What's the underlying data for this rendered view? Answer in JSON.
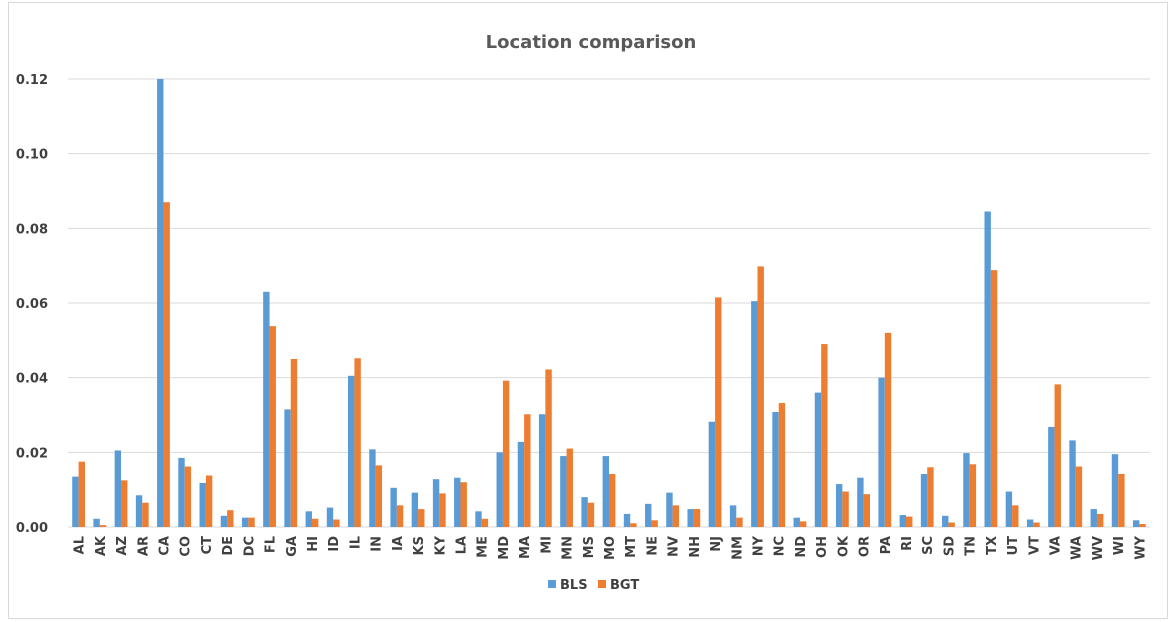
{
  "chart_data": {
    "type": "bar",
    "title": "Location comparison",
    "xlabel": "",
    "ylabel": "",
    "ylim": [
      0,
      0.12
    ],
    "yticks": [
      "0.00",
      "0.02",
      "0.04",
      "0.06",
      "0.08",
      "0.10",
      "0.12"
    ],
    "grid": true,
    "legend_position": "bottom",
    "categories": [
      "AL",
      "AK",
      "AZ",
      "AR",
      "CA",
      "CO",
      "CT",
      "DE",
      "DC",
      "FL",
      "GA",
      "HI",
      "ID",
      "IL",
      "IN",
      "IA",
      "KS",
      "KY",
      "LA",
      "ME",
      "MD",
      "MA",
      "MI",
      "MN",
      "MS",
      "MO",
      "MT",
      "NE",
      "NV",
      "NH",
      "NJ",
      "NM",
      "NY",
      "NC",
      "ND",
      "OH",
      "OK",
      "OR",
      "PA",
      "RI",
      "SC",
      "SD",
      "TN",
      "TX",
      "UT",
      "VT",
      "VA",
      "WA",
      "WV",
      "WI",
      "WY"
    ],
    "series": [
      {
        "name": "BLS",
        "color": "#5b9bd5",
        "values": [
          0.0135,
          0.0022,
          0.0205,
          0.0085,
          0.12,
          0.0185,
          0.0118,
          0.003,
          0.0025,
          0.063,
          0.0315,
          0.0042,
          0.0052,
          0.0405,
          0.0208,
          0.0105,
          0.0092,
          0.0128,
          0.0132,
          0.0042,
          0.02,
          0.0228,
          0.0302,
          0.019,
          0.008,
          0.019,
          0.0035,
          0.0062,
          0.0092,
          0.0048,
          0.0282,
          0.0058,
          0.0605,
          0.0308,
          0.0025,
          0.036,
          0.0115,
          0.0132,
          0.04,
          0.0032,
          0.0142,
          0.003,
          0.0198,
          0.0845,
          0.0095,
          0.002,
          0.0268,
          0.0232,
          0.0048,
          0.0195,
          0.0018
        ]
      },
      {
        "name": "BGT",
        "color": "#ed7d31",
        "values": [
          0.0175,
          0.0005,
          0.0125,
          0.0065,
          0.087,
          0.0162,
          0.0138,
          0.0045,
          0.0025,
          0.0538,
          0.045,
          0.0022,
          0.002,
          0.0452,
          0.0165,
          0.0058,
          0.0048,
          0.009,
          0.012,
          0.0022,
          0.0392,
          0.0302,
          0.0422,
          0.021,
          0.0065,
          0.0142,
          0.001,
          0.0018,
          0.0058,
          0.0048,
          0.0615,
          0.0025,
          0.0698,
          0.0332,
          0.0015,
          0.049,
          0.0095,
          0.0088,
          0.052,
          0.0028,
          0.016,
          0.0012,
          0.0168,
          0.0688,
          0.0058,
          0.0012,
          0.0382,
          0.0162,
          0.0035,
          0.0142,
          0.0008
        ]
      }
    ]
  }
}
